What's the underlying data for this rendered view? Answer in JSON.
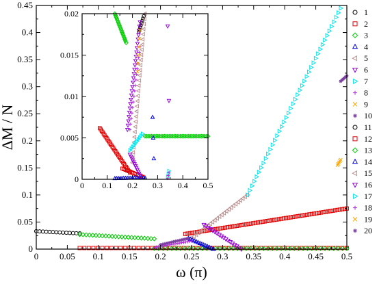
{
  "chart_data": [
    {
      "type": "scatter",
      "xlabel": "ω (π)",
      "ylabel": "ΔM / N",
      "xlim": [
        0,
        0.5
      ],
      "ylim": [
        0,
        0.45
      ],
      "xticks": [
        "0",
        "0.05",
        "0.1",
        "0.15",
        "0.2",
        "0.25",
        "0.3",
        "0.35",
        "0.4",
        "0.45",
        "0.5"
      ],
      "yticks": [
        "0",
        "0.05",
        "0.1",
        "0.15",
        "0.2",
        "0.25",
        "0.3",
        "0.35",
        "0.4",
        "0.45"
      ],
      "legend": {
        "placement": "right",
        "entries": [
          {
            "label": "1",
            "marker": "circle",
            "color": "#000000"
          },
          {
            "label": "2",
            "marker": "square",
            "color": "#e00000"
          },
          {
            "label": "3",
            "marker": "diamond",
            "color": "#00cc00"
          },
          {
            "label": "4",
            "marker": "triangle-up",
            "color": "#0000dd"
          },
          {
            "label": "5",
            "marker": "triangle-left",
            "color": "#bc8f8f"
          },
          {
            "label": "6",
            "marker": "triangle-down",
            "color": "#9400d3"
          },
          {
            "label": "7",
            "marker": "triangle-right",
            "color": "#00e5ee"
          },
          {
            "label": "8",
            "marker": "plus",
            "color": "#b02ad8"
          },
          {
            "label": "9",
            "marker": "x",
            "color": "#ffa500"
          },
          {
            "label": "10",
            "marker": "star",
            "color": "#7b3fa0"
          },
          {
            "label": "11",
            "marker": "circle",
            "color": "#000000"
          },
          {
            "label": "12",
            "marker": "square",
            "color": "#e00000"
          },
          {
            "label": "13",
            "marker": "diamond",
            "color": "#00cc00"
          },
          {
            "label": "14",
            "marker": "triangle-up",
            "color": "#0000dd"
          },
          {
            "label": "15",
            "marker": "triangle-left",
            "color": "#bc8f8f"
          },
          {
            "label": "16",
            "marker": "triangle-down",
            "color": "#9400d3"
          },
          {
            "label": "17",
            "marker": "triangle-right",
            "color": "#00e5ee"
          },
          {
            "label": "18",
            "marker": "plus",
            "color": "#b02ad8"
          },
          {
            "label": "19",
            "marker": "x",
            "color": "#ffa500"
          },
          {
            "label": "20",
            "marker": "star",
            "color": "#7b3fa0"
          }
        ]
      },
      "series": [
        {
          "name": "1",
          "type": "scatter",
          "x": [
            0.0,
            0.07
          ],
          "y": [
            0.033,
            0.029
          ],
          "n": 14
        },
        {
          "name": "2",
          "type": "scatter",
          "x": [
            0.07,
            0.5
          ],
          "y": [
            0.002,
            0.002
          ],
          "n": 60
        },
        {
          "name": "3",
          "type": "scatter",
          "x": [
            0.07,
            0.19
          ],
          "y": [
            0.027,
            0.019
          ],
          "n": 24
        },
        {
          "name": "3",
          "type": "scatter",
          "x": [
            0.19,
            0.5
          ],
          "y": [
            0.001,
            0.001
          ],
          "n": 45
        },
        {
          "name": "12",
          "type": "scatter",
          "x": [
            0.24,
            0.5
          ],
          "y": [
            0.028,
            0.075
          ],
          "n": 70
        },
        {
          "name": "15",
          "type": "scatter",
          "x": [
            0.25,
            0.34
          ],
          "y": [
            0.02,
            0.1
          ],
          "n": 25
        },
        {
          "name": "16",
          "type": "scatter",
          "x": [
            0.27,
            0.33
          ],
          "y": [
            0.045,
            0.0
          ],
          "n": 18
        },
        {
          "name": "14",
          "type": "scatter",
          "x": [
            0.245,
            0.285
          ],
          "y": [
            0.02,
            0.0
          ],
          "n": 14
        },
        {
          "name": "17",
          "type": "scatter",
          "x": [
            0.34,
            0.49
          ],
          "y": [
            0.1,
            0.445
          ],
          "n": 42
        },
        {
          "name": "19",
          "type": "scatter",
          "x": [
            0.485,
            0.49
          ],
          "y": [
            0.155,
            0.165
          ],
          "n": 5
        },
        {
          "name": "20",
          "type": "scatter",
          "x": [
            0.49,
            0.5
          ],
          "y": [
            0.31,
            0.32
          ],
          "n": 6
        },
        {
          "name": "8",
          "type": "scatter",
          "x": [
            0.19,
            0.25
          ],
          "y": [
            0.003,
            0.015
          ],
          "n": 20
        },
        {
          "name": "10",
          "type": "scatter",
          "x": [
            0.2,
            0.245
          ],
          "y": [
            0.008,
            0.02
          ],
          "n": 14
        }
      ]
    },
    {
      "type": "scatter",
      "inset": true,
      "xlim": [
        0,
        0.5
      ],
      "ylim": [
        0,
        0.02
      ],
      "xticks": [
        "0",
        "0.1",
        "0.2",
        "0.3",
        "0.4",
        "0.5"
      ],
      "yticks": [
        "0",
        "0.005",
        "0.01",
        "0.015",
        "0.02"
      ],
      "series": [
        {
          "name": "2",
          "type": "scatter",
          "x": [
            0.07,
            0.19
          ],
          "y": [
            0.0062,
            0.0008
          ],
          "n": 32
        },
        {
          "name": "12",
          "type": "scatter",
          "x": [
            0.16,
            0.24
          ],
          "y": [
            0.0013,
            0.0003
          ],
          "n": 14
        },
        {
          "name": "13",
          "type": "scatter",
          "x": [
            0.25,
            0.5
          ],
          "y": [
            0.0052,
            0.0052
          ],
          "n": 40
        },
        {
          "name": "3",
          "type": "scatter",
          "x": [
            0.13,
            0.175
          ],
          "y": [
            0.02,
            0.0165
          ],
          "n": 18
        },
        {
          "name": "11",
          "type": "scatter",
          "x": [
            0.225,
            0.245
          ],
          "y": [
            0.0178,
            0.0197
          ],
          "n": 8
        },
        {
          "name": "4",
          "type": "scatter",
          "x": [
            0.13,
            0.25
          ],
          "y": [
            0.0001,
            0.0002
          ],
          "n": 18
        },
        {
          "name": "14",
          "type": "scatter",
          "x": [
            0.28,
            0.285
          ],
          "y": [
            0.0075,
            0.0025
          ],
          "n": 3
        },
        {
          "name": "15",
          "type": "scatter",
          "x": [
            0.2,
            0.25
          ],
          "y": [
            0.002,
            0.02
          ],
          "n": 30
        },
        {
          "name": "6",
          "type": "scatter",
          "x": [
            0.18,
            0.23
          ],
          "y": [
            0.006,
            0.019
          ],
          "n": 26
        },
        {
          "name": "16",
          "type": "scatter",
          "x": [
            0.19,
            0.23
          ],
          "y": [
            0.003,
            0.0005
          ],
          "n": 12
        },
        {
          "name": "7",
          "type": "scatter",
          "x": [
            0.19,
            0.24
          ],
          "y": [
            0.0035,
            0.0055
          ],
          "n": 10
        },
        {
          "name": "8",
          "type": "scatter",
          "x": [
            0.19,
            0.23
          ],
          "y": [
            0.006,
            0.016
          ],
          "n": 16
        },
        {
          "name": "9",
          "type": "scatter",
          "x": [
            0.22,
            0.23
          ],
          "y": [
            0.013,
            0.018
          ],
          "n": 6
        },
        {
          "name": "17",
          "type": "scatter",
          "x": [
            0.34,
            0.345
          ],
          "y": [
            0.0003,
            0.001
          ],
          "n": 3
        },
        {
          "name": "18",
          "type": "scatter",
          "x": [
            0.34,
            0.345
          ],
          "y": [
            0.0001,
            0.0008
          ],
          "n": 3
        },
        {
          "name": "6",
          "type": "scatter",
          "x": [
            0.34,
            0.345
          ],
          "y": [
            0.0185,
            0.0095
          ],
          "n": 2
        }
      ]
    }
  ]
}
